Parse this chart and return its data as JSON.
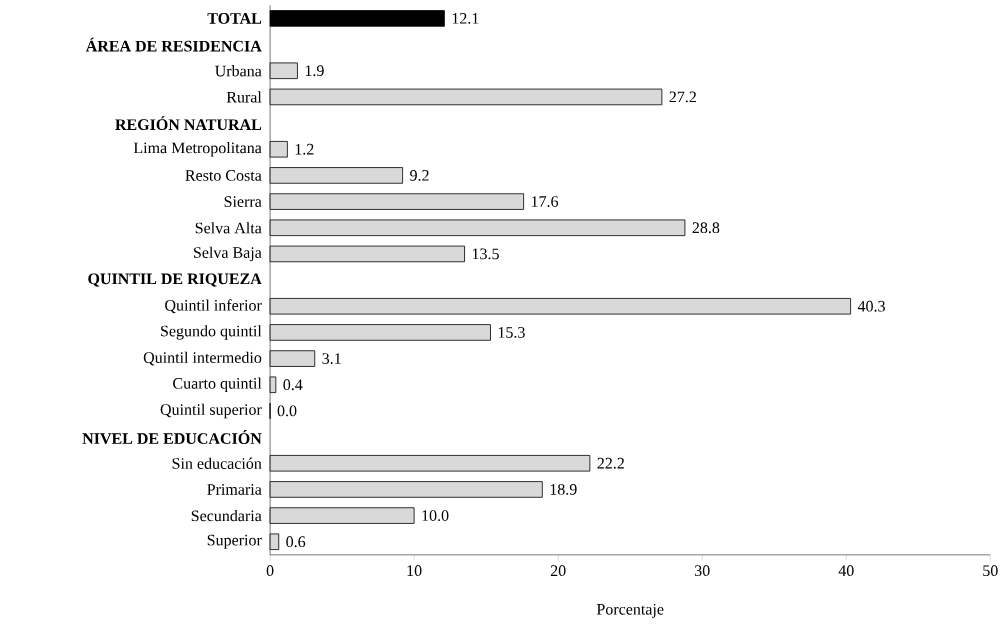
{
  "chart_data": {
    "type": "bar",
    "orientation": "horizontal",
    "categories": [
      "**TOTAL**",
      "**ÁREA DE RESIDENCIA**",
      "Urbana",
      "Rural",
      "**REGIÓN NATURAL**",
      "Lima Metropolitana",
      "Resto Costa",
      "Sierra",
      "Selva Alta",
      "Selva Baja",
      "**QUINTIL DE RIQUEZA**",
      "Quintil inferior",
      "Segundo quintil",
      "Quintil intermedio",
      "Cuarto quintil",
      "Quintil superior",
      "**NIVEL DE EDUCACIÓN**",
      "Sin educación",
      "Primaria",
      "Secundaria",
      "Superior"
    ],
    "values": [
      12.1,
      null,
      1.9,
      27.2,
      null,
      1.2,
      9.2,
      17.6,
      28.8,
      13.5,
      null,
      40.3,
      15.3,
      3.1,
      0.4,
      0.0,
      null,
      22.2,
      18.9,
      10.0,
      0.6
    ],
    "value_labels": [
      "12.1",
      null,
      "1.9",
      "27.2",
      null,
      "1.2",
      "9.2",
      "17.6",
      "28.8",
      "13.5",
      null,
      "40.3",
      "15.3",
      "3.1",
      "0.4",
      "0.0",
      null,
      "22.2",
      "18.9",
      "10.0",
      "0.6"
    ],
    "colors": [
      "#000000",
      null,
      "#d9d9d9",
      "#d9d9d9",
      null,
      "#d9d9d9",
      "#d9d9d9",
      "#d9d9d9",
      "#d9d9d9",
      "#d9d9d9",
      null,
      "#d9d9d9",
      "#d9d9d9",
      "#d9d9d9",
      "#d9d9d9",
      "#d9d9d9",
      null,
      "#d9d9d9",
      "#d9d9d9",
      "#d9d9d9",
      "#d9d9d9"
    ],
    "xlim": [
      0,
      50
    ],
    "xticks": [
      0,
      10,
      20,
      30,
      40,
      50
    ],
    "xlabel": "Porcentaje"
  }
}
